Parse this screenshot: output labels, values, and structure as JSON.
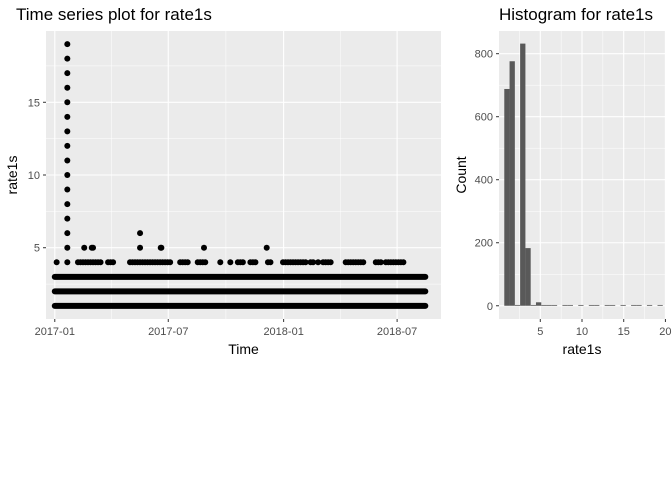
{
  "colors": {
    "panel": "#ebebeb",
    "grid_major": "#ffffff",
    "point": "#000000",
    "bar": "#595959",
    "tick_text": "#4d4d4d",
    "text": "#000000"
  },
  "chart_data": [
    {
      "type": "scatter",
      "title": "Time series plot for rate1s",
      "xlabel": "Time",
      "ylabel": "rate1s",
      "x_axis_type": "date",
      "xlim": [
        "2016-12-18",
        "2018-09-09"
      ],
      "ylim": [
        0.1,
        19.9
      ],
      "x_ticks": [
        "2017-01",
        "2017-07",
        "2018-01",
        "2018-07"
      ],
      "y_ticks": [
        5,
        10,
        15
      ],
      "grid": true,
      "legend": "none",
      "continuous_bands": [
        {
          "y": 1,
          "x_start": "2017-01-01",
          "x_end": "2018-08-15"
        },
        {
          "y": 2,
          "x_start": "2017-01-01",
          "x_end": "2018-08-15"
        },
        {
          "y": 3,
          "x_start": "2017-01-01",
          "x_end": "2018-08-15"
        }
      ],
      "points": [
        {
          "x": "2017-01-21",
          "y": 4
        },
        {
          "x": "2017-01-21",
          "y": 5
        },
        {
          "x": "2017-01-21",
          "y": 6
        },
        {
          "x": "2017-01-21",
          "y": 7
        },
        {
          "x": "2017-01-21",
          "y": 8
        },
        {
          "x": "2017-01-21",
          "y": 9
        },
        {
          "x": "2017-01-21",
          "y": 10
        },
        {
          "x": "2017-01-21",
          "y": 11
        },
        {
          "x": "2017-01-21",
          "y": 12
        },
        {
          "x": "2017-01-21",
          "y": 13
        },
        {
          "x": "2017-01-21",
          "y": 14
        },
        {
          "x": "2017-01-21",
          "y": 15
        },
        {
          "x": "2017-01-21",
          "y": 16
        },
        {
          "x": "2017-01-21",
          "y": 17
        },
        {
          "x": "2017-01-21",
          "y": 18
        },
        {
          "x": "2017-01-21",
          "y": 19
        },
        {
          "x": "2017-01-04",
          "y": 4
        },
        {
          "x": "2017-02-07",
          "y": 4
        },
        {
          "x": "2017-02-11",
          "y": 4
        },
        {
          "x": "2017-02-15",
          "y": 4
        },
        {
          "x": "2017-02-19",
          "y": 4
        },
        {
          "x": "2017-02-23",
          "y": 4
        },
        {
          "x": "2017-02-27",
          "y": 4
        },
        {
          "x": "2017-03-03",
          "y": 4
        },
        {
          "x": "2017-03-07",
          "y": 4
        },
        {
          "x": "2017-03-11",
          "y": 4
        },
        {
          "x": "2017-03-15",
          "y": 4
        },
        {
          "x": "2017-03-27",
          "y": 4
        },
        {
          "x": "2017-03-31",
          "y": 4
        },
        {
          "x": "2017-04-04",
          "y": 4
        },
        {
          "x": "2017-05-01",
          "y": 4
        },
        {
          "x": "2017-05-05",
          "y": 4
        },
        {
          "x": "2017-05-09",
          "y": 4
        },
        {
          "x": "2017-05-13",
          "y": 4
        },
        {
          "x": "2017-05-17",
          "y": 4
        },
        {
          "x": "2017-05-21",
          "y": 4
        },
        {
          "x": "2017-05-25",
          "y": 4
        },
        {
          "x": "2017-05-29",
          "y": 4
        },
        {
          "x": "2017-06-02",
          "y": 4
        },
        {
          "x": "2017-06-06",
          "y": 4
        },
        {
          "x": "2017-06-10",
          "y": 4
        },
        {
          "x": "2017-06-14",
          "y": 4
        },
        {
          "x": "2017-06-18",
          "y": 4
        },
        {
          "x": "2017-06-22",
          "y": 4
        },
        {
          "x": "2017-06-26",
          "y": 4
        },
        {
          "x": "2017-06-30",
          "y": 4
        },
        {
          "x": "2017-07-04",
          "y": 4
        },
        {
          "x": "2017-07-20",
          "y": 4
        },
        {
          "x": "2017-07-24",
          "y": 4
        },
        {
          "x": "2017-07-28",
          "y": 4
        },
        {
          "x": "2017-08-01",
          "y": 4
        },
        {
          "x": "2017-08-17",
          "y": 4
        },
        {
          "x": "2017-08-21",
          "y": 4
        },
        {
          "x": "2017-08-25",
          "y": 4
        },
        {
          "x": "2017-08-29",
          "y": 4
        },
        {
          "x": "2017-09-22",
          "y": 4
        },
        {
          "x": "2017-10-08",
          "y": 4
        },
        {
          "x": "2017-10-20",
          "y": 4
        },
        {
          "x": "2017-10-24",
          "y": 4
        },
        {
          "x": "2017-10-28",
          "y": 4
        },
        {
          "x": "2017-11-09",
          "y": 4
        },
        {
          "x": "2017-11-13",
          "y": 4
        },
        {
          "x": "2017-11-17",
          "y": 4
        },
        {
          "x": "2017-12-07",
          "y": 4
        },
        {
          "x": "2017-12-11",
          "y": 4
        },
        {
          "x": "2017-12-31",
          "y": 4
        },
        {
          "x": "2018-01-04",
          "y": 4
        },
        {
          "x": "2018-01-08",
          "y": 4
        },
        {
          "x": "2018-01-12",
          "y": 4
        },
        {
          "x": "2018-01-16",
          "y": 4
        },
        {
          "x": "2018-01-20",
          "y": 4
        },
        {
          "x": "2018-01-24",
          "y": 4
        },
        {
          "x": "2018-01-28",
          "y": 4
        },
        {
          "x": "2018-02-01",
          "y": 4
        },
        {
          "x": "2018-02-05",
          "y": 4
        },
        {
          "x": "2018-02-13",
          "y": 4
        },
        {
          "x": "2018-02-17",
          "y": 4
        },
        {
          "x": "2018-02-25",
          "y": 4
        },
        {
          "x": "2018-03-05",
          "y": 4
        },
        {
          "x": "2018-03-09",
          "y": 4
        },
        {
          "x": "2018-03-13",
          "y": 4
        },
        {
          "x": "2018-03-17",
          "y": 4
        },
        {
          "x": "2018-04-10",
          "y": 4
        },
        {
          "x": "2018-04-14",
          "y": 4
        },
        {
          "x": "2018-04-18",
          "y": 4
        },
        {
          "x": "2018-04-22",
          "y": 4
        },
        {
          "x": "2018-04-26",
          "y": 4
        },
        {
          "x": "2018-04-30",
          "y": 4
        },
        {
          "x": "2018-05-04",
          "y": 4
        },
        {
          "x": "2018-05-08",
          "y": 4
        },
        {
          "x": "2018-05-28",
          "y": 4
        },
        {
          "x": "2018-06-01",
          "y": 4
        },
        {
          "x": "2018-06-05",
          "y": 4
        },
        {
          "x": "2018-06-13",
          "y": 4
        },
        {
          "x": "2018-06-17",
          "y": 4
        },
        {
          "x": "2018-06-21",
          "y": 4
        },
        {
          "x": "2018-06-25",
          "y": 4
        },
        {
          "x": "2018-06-29",
          "y": 4
        },
        {
          "x": "2018-07-03",
          "y": 4
        },
        {
          "x": "2018-07-07",
          "y": 4
        },
        {
          "x": "2018-07-11",
          "y": 4
        },
        {
          "x": "2017-02-17",
          "y": 5
        },
        {
          "x": "2017-03-01",
          "y": 5
        },
        {
          "x": "2017-03-03",
          "y": 5
        },
        {
          "x": "2017-05-17",
          "y": 5
        },
        {
          "x": "2017-06-19",
          "y": 5
        },
        {
          "x": "2017-06-20",
          "y": 5
        },
        {
          "x": "2017-08-27",
          "y": 5
        },
        {
          "x": "2017-12-05",
          "y": 5
        },
        {
          "x": "2017-05-17",
          "y": 6
        }
      ]
    },
    {
      "type": "bar",
      "title": "Histogram for rate1s",
      "xlabel": "rate1s",
      "ylabel": "Count",
      "xlim": [
        0.05,
        19.95
      ],
      "ylim": [
        -42,
        872
      ],
      "x_ticks": [
        5,
        10,
        15,
        20
      ],
      "y_ticks": [
        0,
        200,
        400,
        600,
        800
      ],
      "bin_width": 0.633,
      "grid": true,
      "legend": "none",
      "bins": [
        {
          "center": 1.0,
          "count": 688
        },
        {
          "center": 1.633,
          "count": 776
        },
        {
          "center": 2.267,
          "count": 0
        },
        {
          "center": 2.9,
          "count": 832
        },
        {
          "center": 3.533,
          "count": 183
        },
        {
          "center": 4.167,
          "count": 0
        },
        {
          "center": 4.8,
          "count": 11
        },
        {
          "center": 5.433,
          "count": 0
        },
        {
          "center": 6.067,
          "count": 2
        },
        {
          "center": 6.7,
          "count": 1
        },
        {
          "center": 7.967,
          "count": 1
        },
        {
          "center": 8.6,
          "count": 1
        },
        {
          "center": 9.867,
          "count": 1
        },
        {
          "center": 11.133,
          "count": 1
        },
        {
          "center": 11.767,
          "count": 1
        },
        {
          "center": 13.033,
          "count": 1
        },
        {
          "center": 13.667,
          "count": 1
        },
        {
          "center": 14.933,
          "count": 1
        },
        {
          "center": 16.2,
          "count": 1
        },
        {
          "center": 16.833,
          "count": 1
        },
        {
          "center": 18.1,
          "count": 1
        },
        {
          "center": 19.367,
          "count": 1
        }
      ]
    }
  ]
}
